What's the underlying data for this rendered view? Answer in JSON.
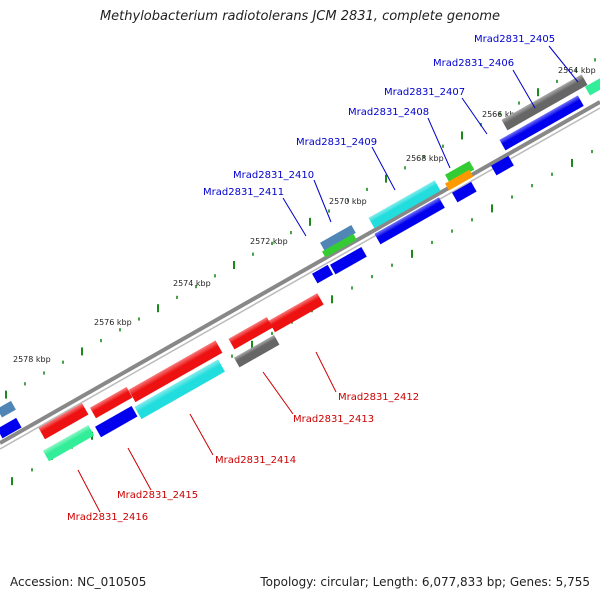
{
  "title": "Methylobacterium radiotolerans JCM 2831, complete genome",
  "footer": {
    "accession": "Accession: NC_010505",
    "summary": "Topology: circular; Length: 6,077,833 bp; Genes: 5,755"
  },
  "colors": {
    "forward_label": "#0000cc",
    "reverse_label": "#cc0000",
    "backbone": "#8a8a8a",
    "tick": "#1a8a1a",
    "forward_gene": "#0000ee",
    "reverse_gene": "#ee1111",
    "cyan_gene": "#22dddd",
    "gray_gene": "#666666",
    "green_gene": "#33cc33",
    "orange_gene": "#ff9900",
    "teal_gene": "#33ee99",
    "steel_gene": "#4f86b5"
  },
  "scale_labels": [
    "2564 kbp",
    "2566 kbp",
    "2568 kbp",
    "2570 kbp",
    "2572 kbp",
    "2574 kbp",
    "2576 kbp",
    "2578 kbp"
  ],
  "forward_genes": [
    "Mrad2831_2405",
    "Mrad2831_2406",
    "Mrad2831_2407",
    "Mrad2831_2408",
    "Mrad2831_2409",
    "Mrad2831_2410",
    "Mrad2831_2411"
  ],
  "reverse_genes": [
    "Mrad2831_2412",
    "Mrad2831_2413",
    "Mrad2831_2414",
    "Mrad2831_2415",
    "Mrad2831_2416"
  ]
}
